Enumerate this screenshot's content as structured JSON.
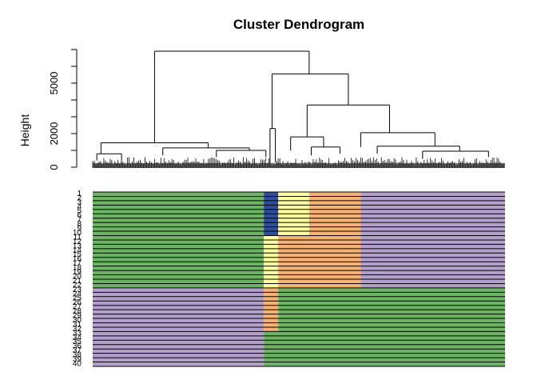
{
  "chart_data": {
    "type": "dendrogram",
    "title": "Cluster Dendrogram",
    "ylabel": "Height",
    "y_ticks": [
      0,
      2000,
      5000
    ],
    "y_tick_labels": [
      "0",
      "2000",
      "5000"
    ],
    "ylim": [
      0,
      7000
    ],
    "tree": {
      "root_height": 6900,
      "left_branch_height": 1450,
      "right_branch_height": 5550,
      "right_sub_split_height": 3700,
      "right_lower_split_height": 2050,
      "left_group_merges": [
        {
          "from_frac": 0.02,
          "to_frac": 0.22,
          "height": 1450
        },
        {
          "from_frac": 0.17,
          "to_frac": 0.3,
          "height": 1150
        },
        {
          "from_frac": 0.3,
          "to_frac": 0.41,
          "height": 1000
        },
        {
          "from_frac": 0.22,
          "to_frac": 0.36,
          "height": 650
        }
      ],
      "right_group_merges": [
        {
          "from_frac": 0.43,
          "to_frac": 0.44,
          "height": 2300
        },
        {
          "from_frac": 0.44,
          "to_frac": 0.52,
          "height": 1800
        },
        {
          "from_frac": 0.52,
          "to_frac": 0.58,
          "height": 1200
        },
        {
          "from_frac": 0.65,
          "to_frac": 0.8,
          "height": 2050
        },
        {
          "from_frac": 0.7,
          "to_frac": 0.88,
          "height": 1250
        },
        {
          "from_frac": 0.8,
          "to_frac": 0.95,
          "height": 950
        }
      ]
    },
    "colorbar": {
      "rows": 40,
      "row_labels": [
        "1",
        "2",
        "3",
        "4",
        "5",
        "6",
        "7",
        "8",
        "9",
        "10",
        "11",
        "12",
        "13",
        "14",
        "15",
        "16",
        "17",
        "18",
        "19",
        "20",
        "21",
        "22",
        "23",
        "24",
        "25",
        "26",
        "27",
        "28",
        "29",
        "30",
        "31",
        "32",
        "33",
        "34",
        "35",
        "36",
        "37",
        "38",
        "39",
        "40"
      ],
      "colors": {
        "green": "#6ab560",
        "blue": "#2b4f9c",
        "yellow": "#ffff99",
        "orange": "#f8b26e",
        "purple": "#b29fcc"
      },
      "segments": [
        {
          "rows": [
            1,
            10
          ],
          "bands": [
            [
              "green",
              0.415
            ],
            [
              "blue",
              0.035
            ],
            [
              "yellow",
              0.075
            ],
            [
              "orange",
              0.125
            ],
            [
              "purple",
              0.35
            ]
          ]
        },
        {
          "rows": [
            11,
            22
          ],
          "bands": [
            [
              "green",
              0.415
            ],
            [
              "yellow",
              0.035
            ],
            [
              "orange",
              0.2
            ],
            [
              "purple",
              0.35
            ]
          ]
        },
        {
          "rows": [
            23,
            32
          ],
          "bands": [
            [
              "purple",
              0.415
            ],
            [
              "orange",
              0.035
            ],
            [
              "green",
              0.55
            ]
          ]
        },
        {
          "rows": [
            33,
            40
          ],
          "bands": [
            [
              "purple",
              0.415
            ],
            [
              "green",
              0.585
            ]
          ]
        }
      ]
    }
  }
}
